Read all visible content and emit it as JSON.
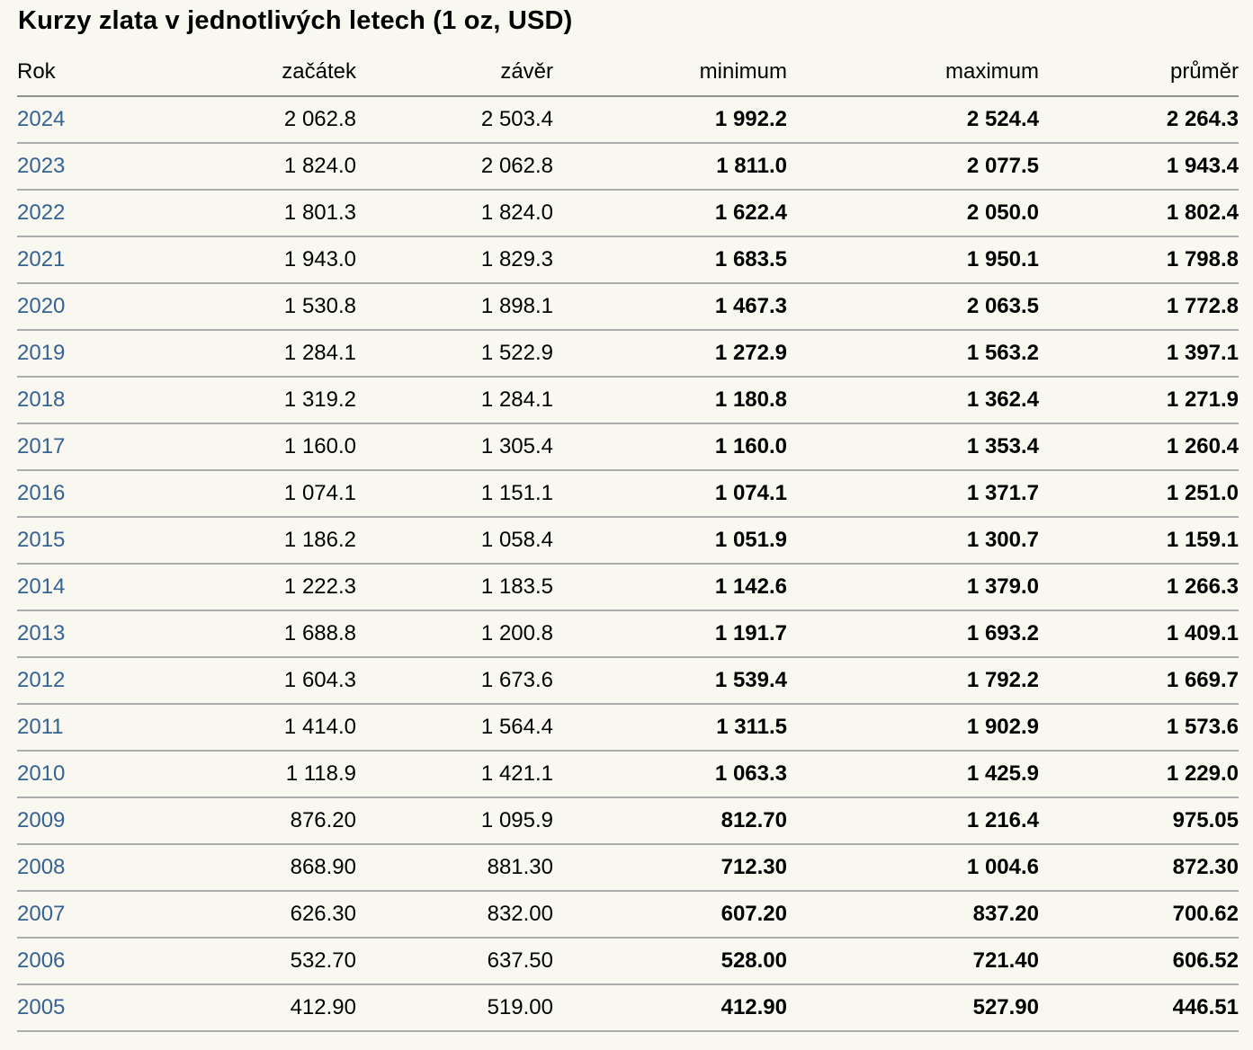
{
  "page": {
    "title": "Kurzy zlata v jednotlivých letech (1 oz, USD)"
  },
  "table": {
    "columns": [
      "Rok",
      "začátek",
      "závěr",
      "minimum",
      "maximum",
      "průměr"
    ],
    "rows": [
      {
        "year": "2024",
        "zacatek": "2 062.8",
        "zaver": "2 503.4",
        "minimum": "1 992.2",
        "maximum": "2 524.4",
        "prumer": "2 264.3"
      },
      {
        "year": "2023",
        "zacatek": "1 824.0",
        "zaver": "2 062.8",
        "minimum": "1 811.0",
        "maximum": "2 077.5",
        "prumer": "1 943.4"
      },
      {
        "year": "2022",
        "zacatek": "1 801.3",
        "zaver": "1 824.0",
        "minimum": "1 622.4",
        "maximum": "2 050.0",
        "prumer": "1 802.4"
      },
      {
        "year": "2021",
        "zacatek": "1 943.0",
        "zaver": "1 829.3",
        "minimum": "1 683.5",
        "maximum": "1 950.1",
        "prumer": "1 798.8"
      },
      {
        "year": "2020",
        "zacatek": "1 530.8",
        "zaver": "1 898.1",
        "minimum": "1 467.3",
        "maximum": "2 063.5",
        "prumer": "1 772.8"
      },
      {
        "year": "2019",
        "zacatek": "1 284.1",
        "zaver": "1 522.9",
        "minimum": "1 272.9",
        "maximum": "1 563.2",
        "prumer": "1 397.1"
      },
      {
        "year": "2018",
        "zacatek": "1 319.2",
        "zaver": "1 284.1",
        "minimum": "1 180.8",
        "maximum": "1 362.4",
        "prumer": "1 271.9"
      },
      {
        "year": "2017",
        "zacatek": "1 160.0",
        "zaver": "1 305.4",
        "minimum": "1 160.0",
        "maximum": "1 353.4",
        "prumer": "1 260.4"
      },
      {
        "year": "2016",
        "zacatek": "1 074.1",
        "zaver": "1 151.1",
        "minimum": "1 074.1",
        "maximum": "1 371.7",
        "prumer": "1 251.0"
      },
      {
        "year": "2015",
        "zacatek": "1 186.2",
        "zaver": "1 058.4",
        "minimum": "1 051.9",
        "maximum": "1 300.7",
        "prumer": "1 159.1"
      },
      {
        "year": "2014",
        "zacatek": "1 222.3",
        "zaver": "1 183.5",
        "minimum": "1 142.6",
        "maximum": "1 379.0",
        "prumer": "1 266.3"
      },
      {
        "year": "2013",
        "zacatek": "1 688.8",
        "zaver": "1 200.8",
        "minimum": "1 191.7",
        "maximum": "1 693.2",
        "prumer": "1 409.1"
      },
      {
        "year": "2012",
        "zacatek": "1 604.3",
        "zaver": "1 673.6",
        "minimum": "1 539.4",
        "maximum": "1 792.2",
        "prumer": "1 669.7"
      },
      {
        "year": "2011",
        "zacatek": "1 414.0",
        "zaver": "1 564.4",
        "minimum": "1 311.5",
        "maximum": "1 902.9",
        "prumer": "1 573.6"
      },
      {
        "year": "2010",
        "zacatek": "1 118.9",
        "zaver": "1 421.1",
        "minimum": "1 063.3",
        "maximum": "1 425.9",
        "prumer": "1 229.0"
      },
      {
        "year": "2009",
        "zacatek": "876.20",
        "zaver": "1 095.9",
        "minimum": "812.70",
        "maximum": "1 216.4",
        "prumer": "975.05"
      },
      {
        "year": "2008",
        "zacatek": "868.90",
        "zaver": "881.30",
        "minimum": "712.30",
        "maximum": "1 004.6",
        "prumer": "872.30"
      },
      {
        "year": "2007",
        "zacatek": "626.30",
        "zaver": "832.00",
        "minimum": "607.20",
        "maximum": "837.20",
        "prumer": "700.62"
      },
      {
        "year": "2006",
        "zacatek": "532.70",
        "zaver": "637.50",
        "minimum": "528.00",
        "maximum": "721.40",
        "prumer": "606.52"
      },
      {
        "year": "2005",
        "zacatek": "412.90",
        "zaver": "519.00",
        "minimum": "412.90",
        "maximum": "527.90",
        "prumer": "446.51"
      }
    ]
  },
  "colors": {
    "background": "#f8f8f1",
    "year_link": "#366292",
    "row_border": "#ababab",
    "header_border": "#909090",
    "text": "#000000"
  }
}
